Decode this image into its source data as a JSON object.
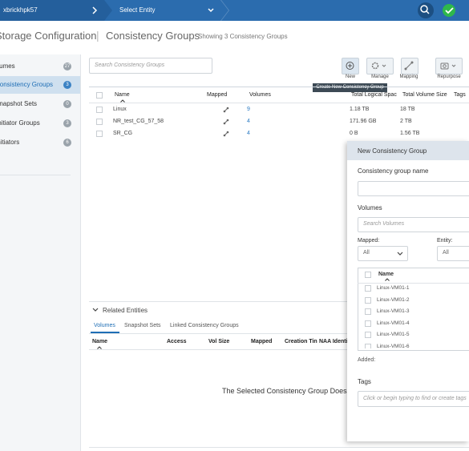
{
  "topbar": {
    "system": "xbrickhpk57",
    "entity": "Select Entity"
  },
  "header": {
    "title": "Storage Configuration",
    "section": "Consistency Groups",
    "subtitle": "Showing 3 Consistency Groups"
  },
  "sidebar": {
    "items": [
      {
        "label": "Volumes",
        "count": "27"
      },
      {
        "label": "Consistency Groups",
        "count": "3"
      },
      {
        "label": "Snapshot Sets",
        "count": "0"
      },
      {
        "label": "Initiator Groups",
        "count": "3"
      },
      {
        "label": "Initiators",
        "count": "6"
      }
    ]
  },
  "search": {
    "placeholder": "Search Consistency Groups"
  },
  "toolbar": {
    "buttons": [
      "New",
      "Manage",
      "Mapping",
      "Repurpose"
    ],
    "tooltip": "Create New Consistency Group"
  },
  "table": {
    "columns": [
      "Name",
      "Mapped",
      "Volumes",
      "Total Logical Spac",
      "Total Volume Size",
      "Tags"
    ],
    "rows": [
      [
        "Linux",
        "9",
        "1.18 TB",
        "18 TB"
      ],
      [
        "NR_test_CG_57_58",
        "4",
        "171.96 GB",
        "2 TB"
      ],
      [
        "SR_CG",
        "4",
        "0 B",
        "1.56 TB"
      ]
    ]
  },
  "related": {
    "title": "Related Entities",
    "tabs": [
      "Volumes",
      "Snapshot Sets",
      "Linked Consistency Groups"
    ],
    "columns": [
      "Name",
      "Access",
      "Vol Size",
      "Mapped",
      "Creation Tin",
      "NAA Identi"
    ],
    "message": "The Selected Consistency Group Does"
  },
  "dialog": {
    "title": "New Consistency Group",
    "name_label": "Consistency group name",
    "volumes_label": "Volumes",
    "search_placeholder": "Search Volumes",
    "mapped_label": "Mapped:",
    "mapped_value": "All",
    "entity_label": "Entity:",
    "entity_value": "All",
    "list_header": "Name",
    "volumes": [
      "Linux-VM01-1",
      "Linux-VM01-2",
      "Linux-VM01-3",
      "Linux-VM01-4",
      "Linux-VM01-5",
      "Linux-VM01-6"
    ],
    "added_label": "Added:",
    "tags_label": "Tags",
    "tags_placeholder": "Click or begin typing to find or create tags"
  }
}
